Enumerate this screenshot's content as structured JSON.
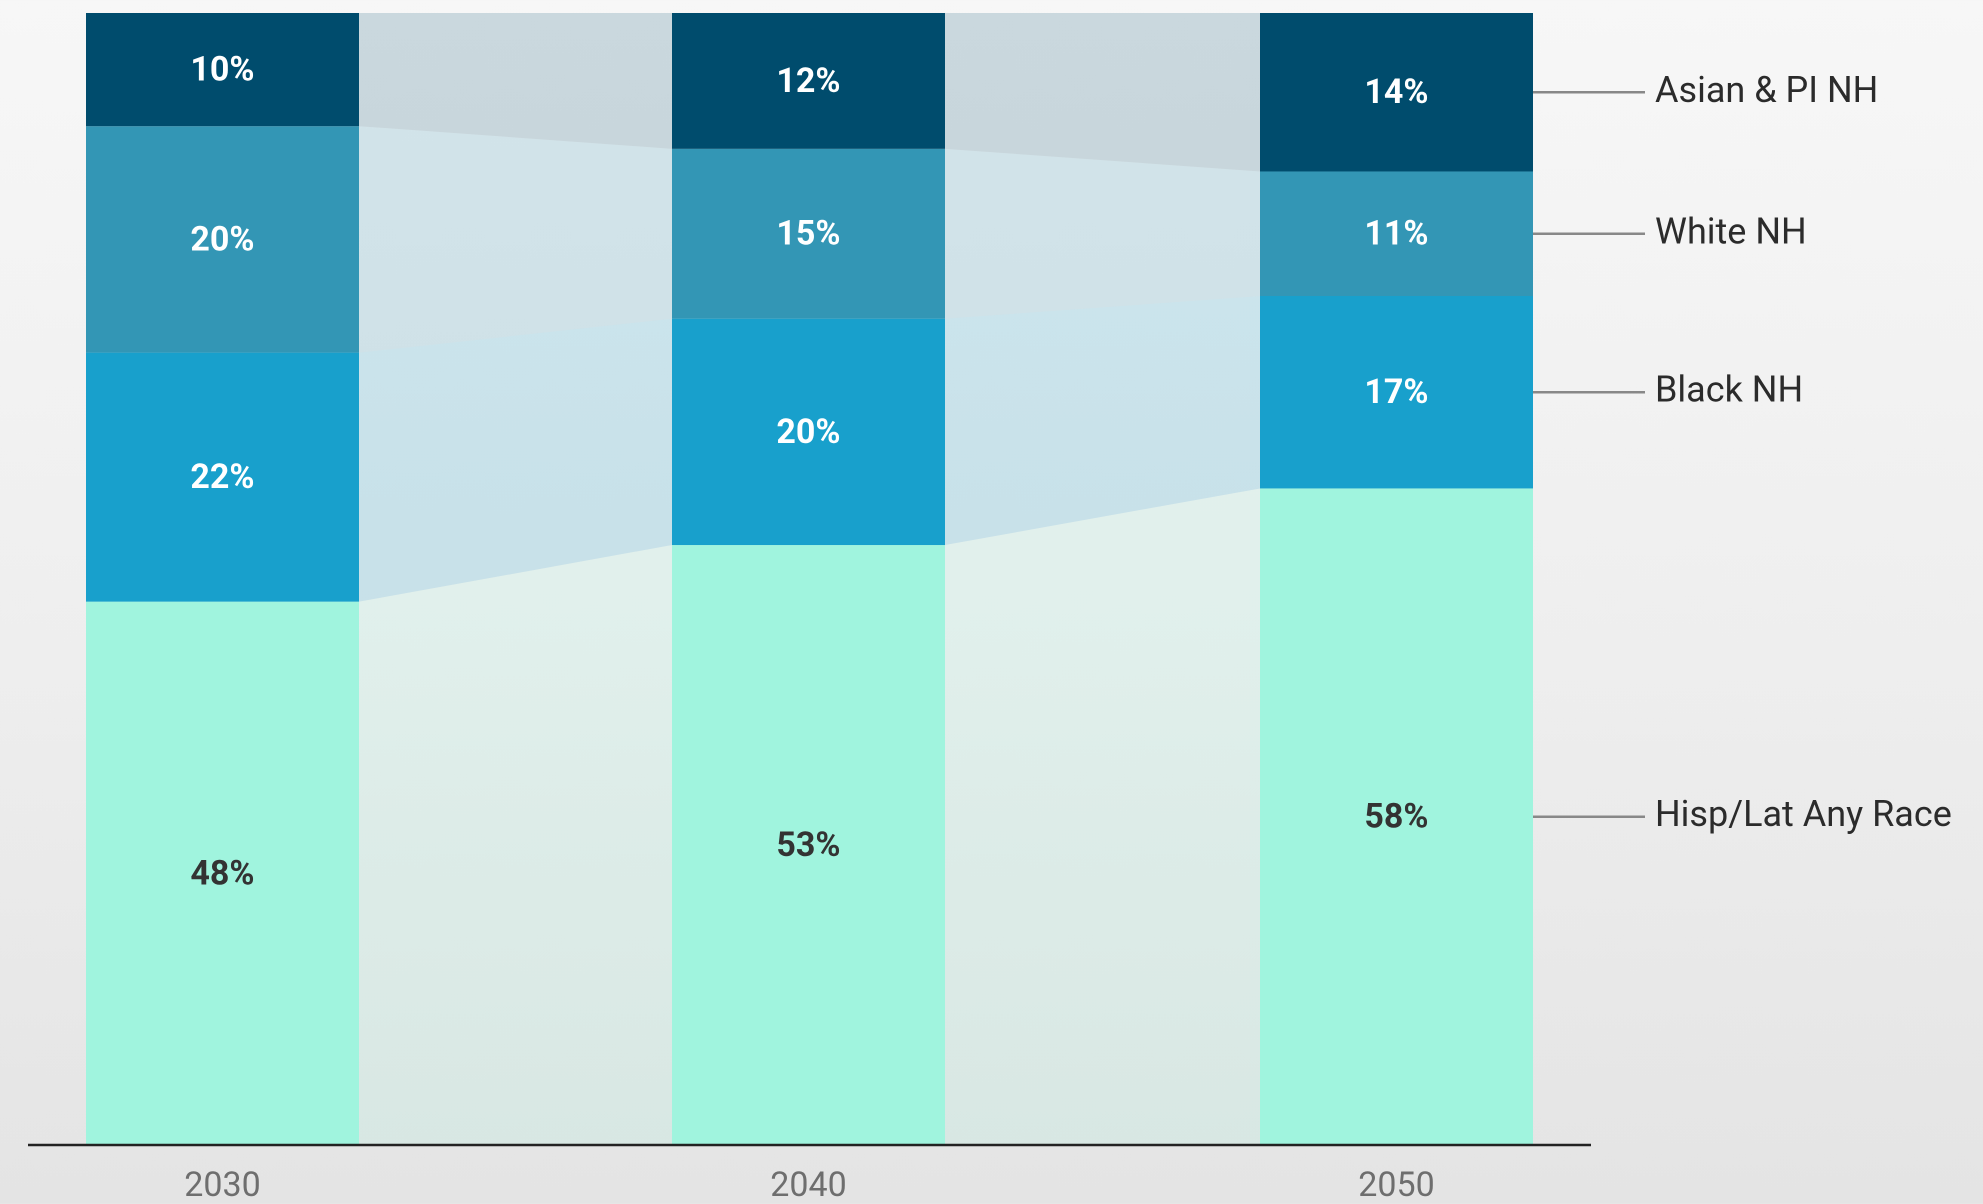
{
  "chart_data": {
    "type": "stacked-bar",
    "categories": [
      "2030",
      "2040",
      "2050"
    ],
    "ylim": [
      0,
      100
    ],
    "series": [
      {
        "name": "Hisp/Lat Any Race",
        "color": "#a0f4de",
        "values": [
          48,
          53,
          58
        ],
        "value_labels": [
          "48%",
          "53%",
          "58%"
        ]
      },
      {
        "name": "Black NH",
        "color": "#18a0cc",
        "values": [
          22,
          20,
          17
        ],
        "value_labels": [
          "22%",
          "20%",
          "17%"
        ]
      },
      {
        "name": "White NH",
        "color": "#3396b5",
        "values": [
          20,
          15,
          11
        ],
        "value_labels": [
          "20%",
          "15%",
          "11%"
        ]
      },
      {
        "name": "Asian & PI NH",
        "color": "#004c6d",
        "values": [
          10,
          12,
          14
        ],
        "value_labels": [
          "10%",
          "12%",
          "14%"
        ]
      }
    ]
  }
}
